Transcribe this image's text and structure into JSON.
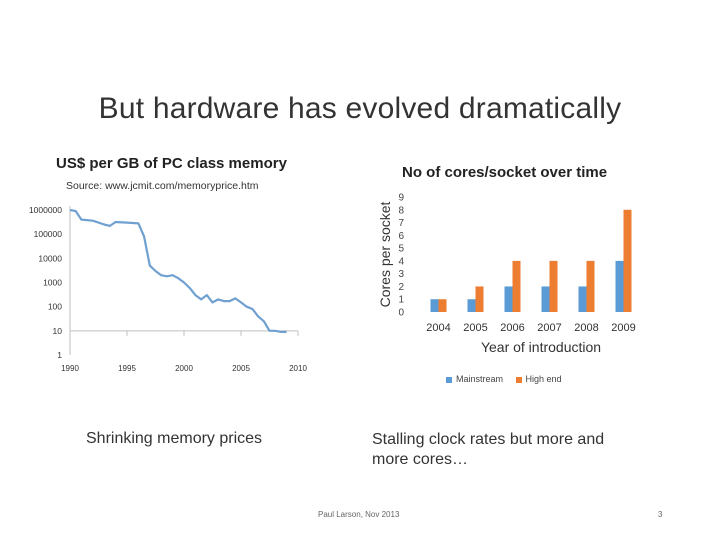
{
  "slide": {
    "title": "But hardware has evolved dramatically",
    "caption_left": "Shrinking memory prices",
    "caption_right": "Stalling clock rates but more and more cores…",
    "footer": "Paul Larson, Nov 2013",
    "page_number": "3"
  },
  "colors": {
    "mainstream": "#5b9bd5",
    "high_end": "#ed7d31",
    "axis": "#bfbfbf"
  },
  "chart_data": [
    {
      "type": "line",
      "title": "US$ per GB of PC class memory",
      "subtitle": "Source: www.jcmit.com/memoryprice.htm",
      "xlabel": "",
      "ylabel": "",
      "yscale": "log",
      "xlim": [
        1990,
        2010
      ],
      "ylim": [
        1,
        1000000
      ],
      "xticks": [
        "1990",
        "1995",
        "2000",
        "2005",
        "2010"
      ],
      "yticks": [
        "1",
        "10",
        "100",
        "1000",
        "10000",
        "100000",
        "1000000"
      ],
      "grid": false,
      "series": [
        {
          "x": [
            1990,
            1990.5,
            1991,
            1992,
            1993,
            1993.5,
            1994,
            1995,
            1996,
            1996.5,
            1997,
            1997.5,
            1998,
            1998.5,
            1999,
            1999.5,
            2000,
            2000.5,
            2001,
            2001.5,
            2002,
            2002.5,
            2003,
            2003.5,
            2004,
            2004.5,
            2005,
            2005.5,
            2006,
            2006.5,
            2007,
            2007.5,
            2008,
            2008.5,
            2009
          ],
          "y": [
            1000000,
            900000,
            400000,
            360000,
            250000,
            220000,
            320000,
            300000,
            280000,
            80000,
            5000,
            3000,
            2000,
            1800,
            2000,
            1500,
            1000,
            600,
            300,
            200,
            300,
            150,
            200,
            170,
            170,
            220,
            150,
            100,
            80,
            40,
            25,
            10,
            10,
            9,
            9
          ]
        }
      ]
    },
    {
      "type": "bar",
      "title": "No of cores/socket over time",
      "xlabel": "Year of introduction",
      "ylabel": "Cores per socket",
      "ylim": [
        0,
        9
      ],
      "yticks": [
        "0",
        "1",
        "2",
        "3",
        "4",
        "5",
        "6",
        "7",
        "8",
        "9"
      ],
      "categories": [
        "2004",
        "2005",
        "2006",
        "2007",
        "2008",
        "2009"
      ],
      "legend": "bottom",
      "series": [
        {
          "name": "Mainstream",
          "values": [
            1,
            1,
            2,
            2,
            2,
            4
          ]
        },
        {
          "name": "High end",
          "values": [
            1,
            2,
            4,
            4,
            4,
            8
          ]
        }
      ]
    }
  ]
}
